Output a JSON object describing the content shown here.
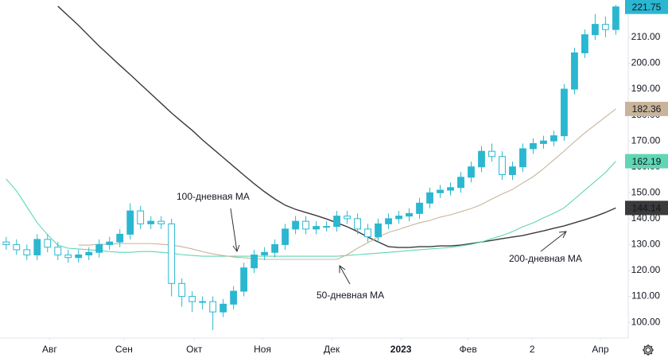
{
  "chart_data": {
    "type": "candlestick",
    "color": "#2bb7d0",
    "x": [
      0,
      1,
      2,
      3,
      4,
      5,
      6,
      7,
      8,
      9,
      10,
      11,
      12,
      13,
      14,
      15,
      16,
      17,
      18,
      19,
      20,
      21,
      22,
      23,
      24,
      25,
      26,
      27,
      28,
      29,
      30,
      31,
      32,
      33,
      34,
      35,
      36,
      37,
      38,
      39,
      40,
      41,
      42,
      43,
      44,
      45,
      46,
      47,
      48,
      49,
      50,
      51,
      52,
      53,
      54,
      55,
      56,
      57,
      58,
      59
    ],
    "open": [
      131,
      130,
      128,
      126,
      132,
      129,
      126,
      125,
      126,
      127,
      130,
      131,
      134,
      143,
      138,
      139,
      138,
      115,
      110,
      108,
      108,
      104,
      107,
      112,
      121,
      126,
      127,
      130,
      136,
      139,
      136,
      137,
      137,
      141,
      140,
      136,
      133,
      138,
      140,
      141,
      142,
      146,
      150,
      151,
      152,
      156,
      160,
      166,
      164,
      157,
      160,
      167,
      169,
      170,
      172,
      190,
      204,
      211,
      215,
      213
    ],
    "high": [
      133,
      132,
      130,
      134,
      134,
      131,
      128,
      128,
      129,
      132,
      133,
      136,
      146,
      145,
      141,
      141,
      140,
      117,
      112,
      110,
      110,
      109,
      114,
      123,
      128,
      129,
      132,
      138,
      141,
      141,
      139,
      139,
      143,
      143,
      142,
      138,
      140,
      142,
      143,
      144,
      148,
      152,
      153,
      154,
      158,
      162,
      168,
      169,
      166,
      162,
      169,
      171,
      172,
      174,
      192,
      206,
      213,
      219,
      218,
      222.5
    ],
    "low": [
      128,
      126,
      124,
      124,
      127,
      124,
      123,
      123,
      124,
      125,
      128,
      129,
      132,
      136,
      136,
      136,
      110,
      106,
      104,
      105,
      97,
      102,
      105,
      110,
      119,
      124,
      125,
      128,
      134,
      134,
      134,
      135,
      135,
      138,
      134,
      131,
      131,
      136,
      138,
      139,
      140,
      144,
      148,
      149,
      150,
      154,
      158,
      162,
      155,
      155,
      158,
      165,
      167,
      168,
      170,
      188,
      202,
      209,
      210,
      211
    ],
    "close": [
      130,
      128,
      126,
      132,
      129,
      126,
      125,
      126,
      127,
      130,
      131,
      134,
      143,
      138,
      139,
      138,
      115,
      110,
      108,
      108,
      104,
      107,
      112,
      121,
      126,
      127,
      130,
      136,
      139,
      136,
      137,
      137,
      141,
      140,
      136,
      133,
      138,
      140,
      141,
      142,
      146,
      150,
      151,
      152,
      156,
      160,
      166,
      164,
      157,
      160,
      167,
      169,
      170,
      172,
      190,
      204,
      211,
      215,
      213,
      221.75
    ],
    "series": [
      {
        "name": "200-дневная MA",
        "color": "#3a3a3a",
        "values": [
          null,
          null,
          null,
          null,
          null,
          222.0,
          218.3,
          214.6,
          210.6,
          206.6,
          202.9,
          199.2,
          195.6,
          191.9,
          188.2,
          184.5,
          180.8,
          177.4,
          174.1,
          170.4,
          167.0,
          163.6,
          160.2,
          156.8,
          153.5,
          150.4,
          147.6,
          145.2,
          143.6,
          142.4,
          141.2,
          139.9,
          138.4,
          136.9,
          135.0,
          132.9,
          131.0,
          129.2,
          128.9,
          128.9,
          129.2,
          129.2,
          129.5,
          129.5,
          129.8,
          130.4,
          131.0,
          131.6,
          132.3,
          132.9,
          133.5,
          134.4,
          135.3,
          136.3,
          137.2,
          138.4,
          139.6,
          140.9,
          142.4,
          144.14
        ]
      },
      {
        "name": "100-дневная MA",
        "color": "#5fd6b4",
        "values": [
          155.3,
          150.7,
          144.6,
          138.4,
          133.8,
          129.8,
          128.6,
          128.3,
          128.0,
          127.7,
          127.3,
          127.0,
          127.0,
          127.3,
          127.3,
          127.0,
          126.7,
          126.1,
          125.8,
          125.5,
          125.5,
          125.5,
          125.5,
          125.5,
          125.5,
          125.5,
          125.5,
          125.5,
          125.5,
          125.5,
          125.5,
          125.5,
          125.5,
          125.8,
          126.1,
          126.4,
          126.7,
          127.0,
          127.3,
          127.7,
          128.0,
          128.3,
          128.6,
          128.9,
          129.5,
          130.1,
          131.0,
          132.3,
          133.5,
          135.0,
          136.9,
          138.4,
          140.3,
          142.1,
          144.2,
          147.6,
          151.0,
          154.4,
          157.8,
          162.19
        ]
      },
      {
        "name": "50-дневная MA",
        "color": "#c8b49a",
        "values": [
          null,
          null,
          null,
          null,
          null,
          null,
          null,
          129.8,
          129.8,
          130.1,
          130.1,
          130.4,
          130.4,
          130.4,
          130.4,
          130.1,
          129.8,
          129.2,
          128.3,
          127.3,
          126.4,
          125.8,
          125.2,
          124.9,
          124.6,
          124.3,
          124.3,
          124.3,
          124.3,
          124.3,
          124.3,
          124.3,
          124.3,
          126.1,
          128.6,
          130.7,
          132.9,
          134.7,
          135.9,
          137.2,
          138.4,
          139.3,
          140.6,
          141.5,
          142.7,
          143.9,
          145.5,
          147.6,
          149.5,
          151.3,
          153.8,
          156.2,
          159.3,
          162.7,
          166.1,
          169.7,
          173.1,
          176.2,
          179.3,
          182.36
        ]
      }
    ],
    "xlim": [
      -0.6,
      60.2
    ],
    "ylim": [
      93.9,
      224.4
    ],
    "xticks": [
      {
        "value": 4.2,
        "label": "Авг"
      },
      {
        "value": 11.4,
        "label": "Сен"
      },
      {
        "value": 18.2,
        "label": "Окт"
      },
      {
        "value": 24.8,
        "label": "Ноя"
      },
      {
        "value": 31.5,
        "label": "Дек"
      },
      {
        "value": 38.2,
        "label": "2023"
      },
      {
        "value": 44.7,
        "label": "Фев"
      },
      {
        "value": 50.9,
        "label": "2"
      },
      {
        "value": 57.5,
        "label": "Апр"
      }
    ],
    "yticks": [
      {
        "value": 100,
        "label": "100.00"
      },
      {
        "value": 110,
        "label": "110.00"
      },
      {
        "value": 120,
        "label": "120.00"
      },
      {
        "value": 130,
        "label": "130.00"
      },
      {
        "value": 140,
        "label": "140.00"
      },
      {
        "value": 150,
        "label": "150.00"
      },
      {
        "value": 160,
        "label": "160.00"
      },
      {
        "value": 170,
        "label": "170.00"
      },
      {
        "value": 180,
        "label": "180.00"
      },
      {
        "value": 190,
        "label": "190.00"
      },
      {
        "value": 200,
        "label": "200.00"
      },
      {
        "value": 210,
        "label": "210.00"
      }
    ],
    "grid": false
  }
}
